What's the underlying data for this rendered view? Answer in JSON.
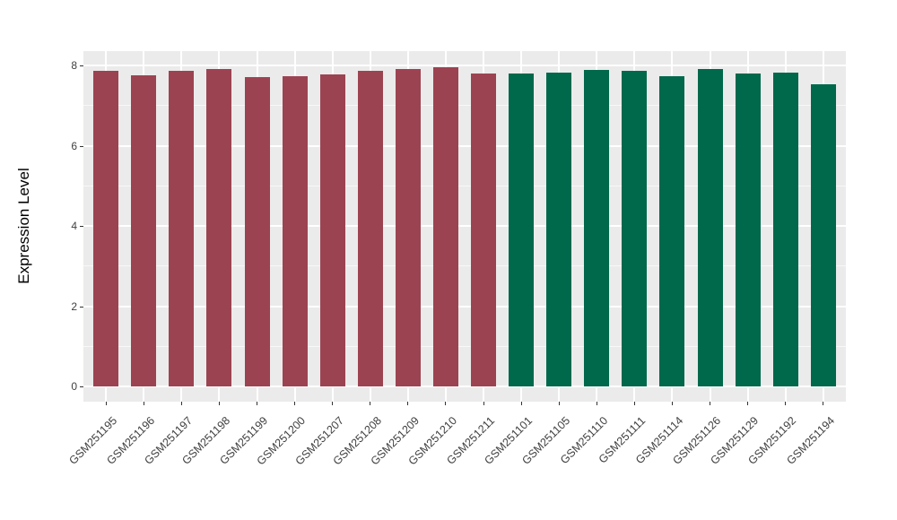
{
  "chart_data": {
    "type": "bar",
    "title": "",
    "xlabel": "",
    "ylabel": "Expression Level",
    "yticks": [
      0,
      2,
      4,
      6,
      8
    ],
    "yminor": [
      1,
      3,
      5,
      7
    ],
    "ylim": [
      0,
      8.4
    ],
    "grid": "on",
    "legend": "none",
    "panel_bg": "#EBEBEB",
    "grid_major_color": "#FFFFFF",
    "grid_minor_color": "rgba(255,255,255,0.65)",
    "tick_mark_color": "#333333",
    "axis_text_color": "#404040",
    "axis_title_color": "#000000",
    "group_colors": {
      "left": "#9C4352",
      "right": "#00684B"
    },
    "categories": [
      "GSM251195",
      "GSM251196",
      "GSM251197",
      "GSM251198",
      "GSM251199",
      "GSM251200",
      "GSM251207",
      "GSM251208",
      "GSM251209",
      "GSM251210",
      "GSM251211",
      "GSM251101",
      "GSM251105",
      "GSM251110",
      "GSM251111",
      "GSM251114",
      "GSM251126",
      "GSM251129",
      "GSM251192",
      "GSM251194"
    ],
    "bars": [
      {
        "label": "GSM251195",
        "value": 7.87,
        "group": "left"
      },
      {
        "label": "GSM251196",
        "value": 7.75,
        "group": "left"
      },
      {
        "label": "GSM251197",
        "value": 7.87,
        "group": "left"
      },
      {
        "label": "GSM251198",
        "value": 7.92,
        "group": "left"
      },
      {
        "label": "GSM251199",
        "value": 7.71,
        "group": "left"
      },
      {
        "label": "GSM251200",
        "value": 7.73,
        "group": "left"
      },
      {
        "label": "GSM251207",
        "value": 7.78,
        "group": "left"
      },
      {
        "label": "GSM251208",
        "value": 7.87,
        "group": "left"
      },
      {
        "label": "GSM251209",
        "value": 7.91,
        "group": "left"
      },
      {
        "label": "GSM251210",
        "value": 7.95,
        "group": "left"
      },
      {
        "label": "GSM251211",
        "value": 7.8,
        "group": "left"
      },
      {
        "label": "GSM251101",
        "value": 7.8,
        "group": "right"
      },
      {
        "label": "GSM251105",
        "value": 7.83,
        "group": "right"
      },
      {
        "label": "GSM251110",
        "value": 7.89,
        "group": "right"
      },
      {
        "label": "GSM251111",
        "value": 7.86,
        "group": "right"
      },
      {
        "label": "GSM251114",
        "value": 7.74,
        "group": "right"
      },
      {
        "label": "GSM251126",
        "value": 7.92,
        "group": "right"
      },
      {
        "label": "GSM251129",
        "value": 7.81,
        "group": "right"
      },
      {
        "label": "GSM251192",
        "value": 7.82,
        "group": "right"
      },
      {
        "label": "GSM251194",
        "value": 7.52,
        "group": "right"
      }
    ]
  }
}
